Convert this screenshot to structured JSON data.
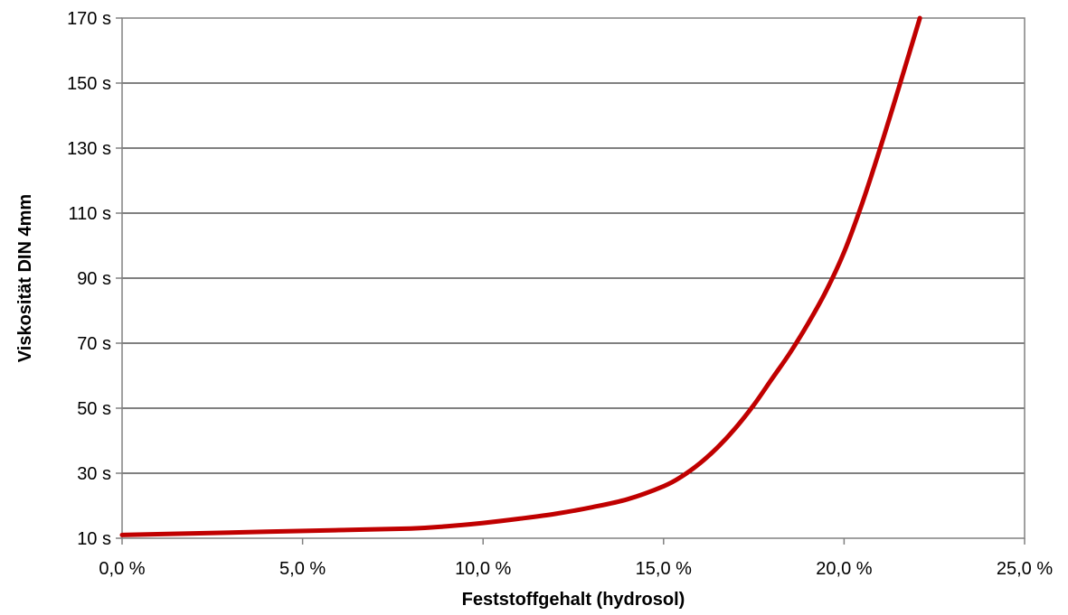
{
  "colors": {
    "series": "#c00000",
    "grid": "#000000",
    "axis": "#808080",
    "background": "#ffffff"
  },
  "chart_data": {
    "type": "line",
    "title": "",
    "xlabel": "Feststoffgehalt (hydrosol)",
    "ylabel": "Viskosität DIN 4mm",
    "xlim": [
      0,
      25
    ],
    "ylim": [
      10,
      170
    ],
    "x_ticks": [
      0,
      5,
      10,
      15,
      20,
      25
    ],
    "x_tick_labels": [
      "0,0 %",
      "5,0 %",
      "10,0 %",
      "15,0 %",
      "20,0 %",
      "25,0 %"
    ],
    "y_ticks": [
      10,
      30,
      50,
      70,
      90,
      110,
      130,
      150,
      170
    ],
    "y_tick_labels": [
      "10 s",
      "30 s",
      "50 s",
      "70 s",
      "90 s",
      "110 s",
      "130 s",
      "150 s",
      "170 s"
    ],
    "grid": true,
    "legend": "none",
    "series": [
      {
        "x": [
          0,
          2,
          4,
          6,
          8,
          9,
          10,
          11,
          12,
          13,
          14,
          15,
          15.5,
          16,
          16.5,
          17,
          17.5,
          18,
          18.5,
          19,
          19.5,
          20,
          20.5,
          21,
          21.5,
          22.1
        ],
        "y": [
          11,
          11.5,
          12,
          12.5,
          13,
          13.7,
          14.7,
          16,
          17.5,
          19.5,
          22,
          26,
          29,
          33,
          38,
          44,
          51,
          59,
          67,
          76,
          86,
          98,
          113,
          130,
          148,
          170
        ]
      }
    ]
  }
}
